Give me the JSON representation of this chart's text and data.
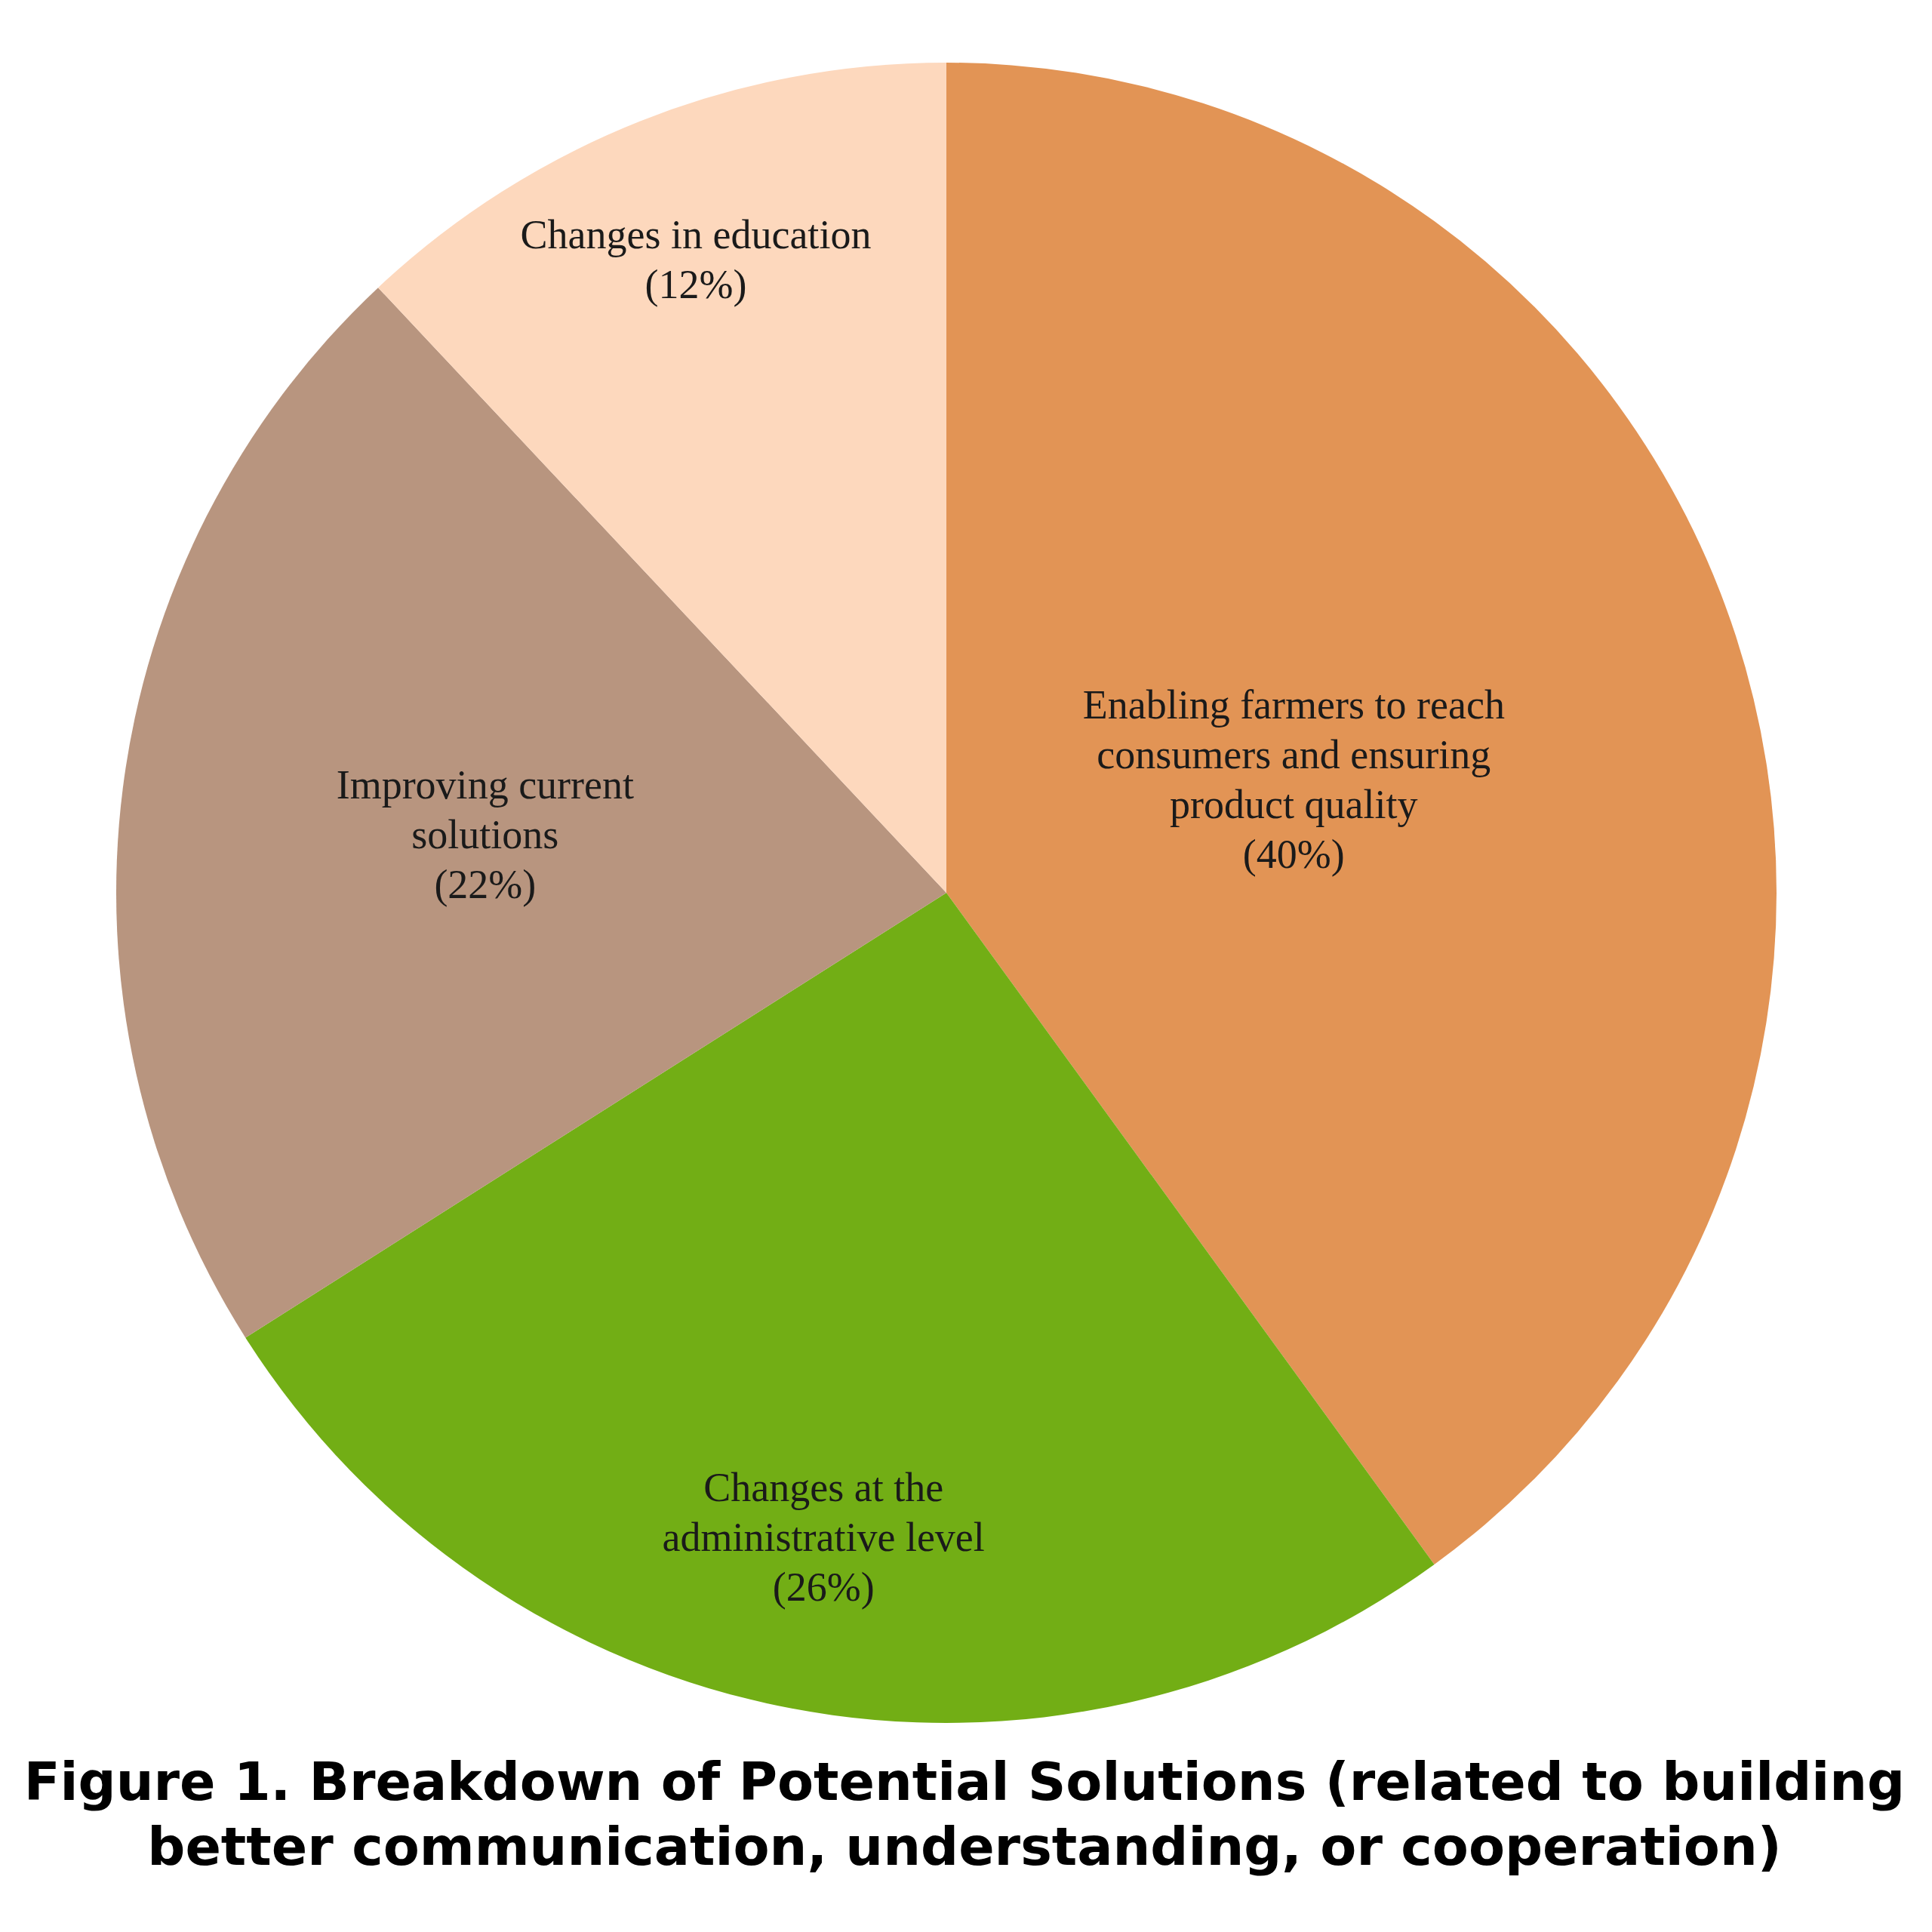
{
  "chart_data": {
    "type": "pie",
    "title": "Figure 1. Breakdown of Potential Solutions (related to building better communication, understanding, or cooperation)",
    "categories": [
      "Enabling farmers to reach consumers and ensuring product quality",
      "Changes at the administrative level",
      "Improving current solutions",
      "Changes in education"
    ],
    "values": [
      40,
      26,
      22,
      12
    ],
    "colors": [
      "#e29455",
      "#72ae15",
      "#b8957f",
      "#fdd8bd"
    ],
    "value_labels": [
      "(40%)",
      "(26%)",
      "(22%)",
      "(12%)"
    ],
    "legend": false
  }
}
